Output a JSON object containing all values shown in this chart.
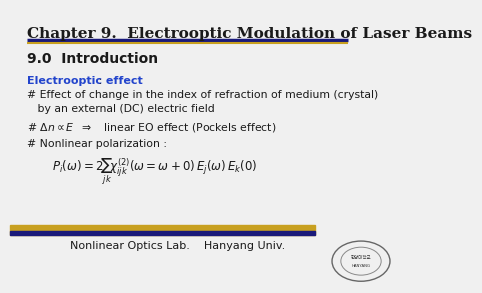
{
  "title": "Chapter 9.  Electrooptic Modulation of Laser Beams",
  "section": "9.0  Introduction",
  "effect_label": "Electrooptic effect",
  "effect_colon": " :",
  "bullet1_line1": "# Effect of change in the index of refraction of medium (crystal)",
  "bullet1_line2": "   by an external (DC) electric field",
  "bullet3": "# Nonlinear polarization :",
  "footer_left": "Nonlinear Optics Lab.    Hanyang Univ.",
  "title_color": "#1a1a1a",
  "title_underline_color1": "#1a1a7a",
  "title_underline_color2": "#c8a020",
  "effect_color": "#2244cc",
  "body_color": "#1a1a1a",
  "footer_bg_gold": "#c8a020",
  "footer_bg_blue": "#1a1a7a",
  "bg_color": "#f0f0f0"
}
